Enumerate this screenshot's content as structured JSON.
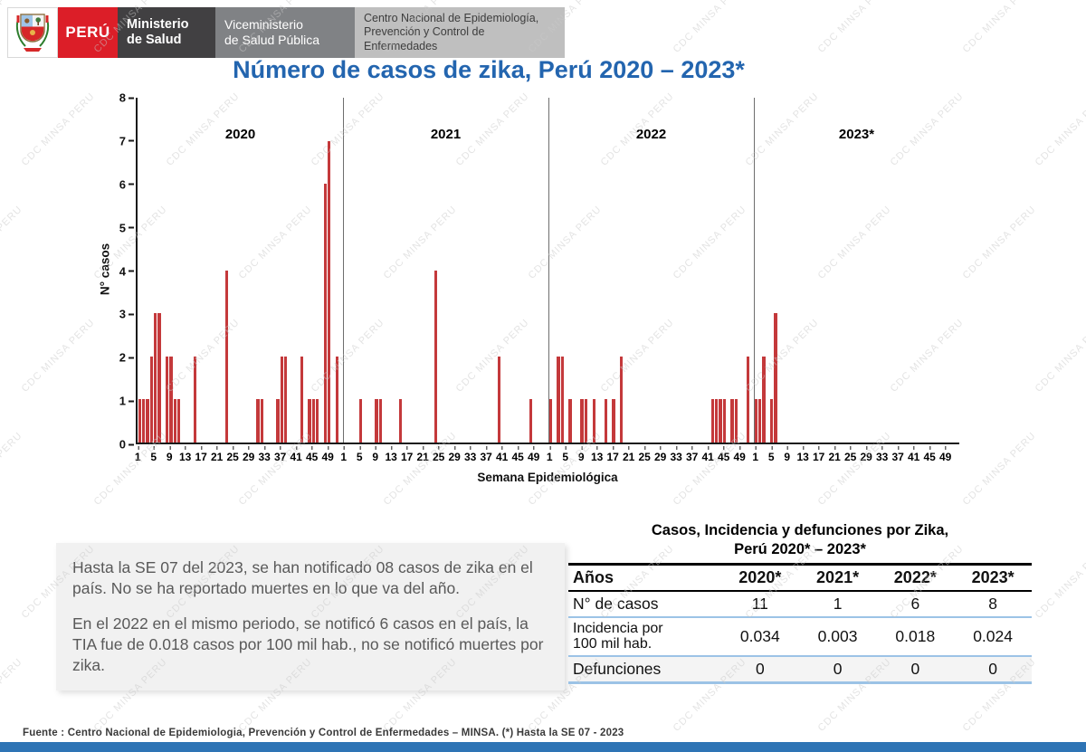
{
  "colors": {
    "peru_red": "#DC1E28",
    "ministry_dark": "#414042",
    "vice_gray": "#808285",
    "center_gray": "#BFBFBF",
    "title_blue": "#2365AF",
    "bar_red": "#C4393B",
    "table_line_blue": "#9CC3E6",
    "bottom_bar_blue": "#2E74B5",
    "note_bg": "#F1F1F1",
    "note_text": "#595959",
    "watermark_gray": "#C9C9C9"
  },
  "watermark": "CDC MINSA PERU",
  "header": {
    "brand_peru": "PERÚ",
    "ministry": "Ministerio\nde Salud",
    "viceministry": "Viceministerio\nde Salud Pública",
    "center": "Centro Nacional de Epidemiología,\nPrevención y Control de\nEnfermedades"
  },
  "title": "Número de casos de zika, Perú 2020 – 2023*",
  "chart_data": {
    "type": "bar",
    "title": "Número de casos de zika, Perú 2020 – 2023*",
    "ylabel": "N° casos",
    "xlabel": "Semana Epidemiológica",
    "ylim": [
      0,
      8
    ],
    "yticks": [
      0,
      1,
      2,
      3,
      4,
      5,
      6,
      7,
      8
    ],
    "grid": false,
    "weeks_per_year": 52,
    "x_tick_weeks": [
      1,
      5,
      9,
      13,
      17,
      21,
      25,
      29,
      33,
      37,
      41,
      45,
      49
    ],
    "bar_color": "#C4393B",
    "years": [
      {
        "label": "2020",
        "bars": [
          [
            1,
            1
          ],
          [
            2,
            1
          ],
          [
            3,
            1
          ],
          [
            4,
            2
          ],
          [
            5,
            3
          ],
          [
            6,
            3
          ],
          [
            8,
            2
          ],
          [
            9,
            2
          ],
          [
            10,
            1
          ],
          [
            11,
            1
          ],
          [
            15,
            2
          ],
          [
            23,
            4
          ],
          [
            31,
            1
          ],
          [
            32,
            1
          ],
          [
            36,
            1
          ],
          [
            37,
            2
          ],
          [
            38,
            2
          ],
          [
            42,
            2
          ],
          [
            44,
            1
          ],
          [
            45,
            1
          ],
          [
            46,
            1
          ],
          [
            48,
            6
          ],
          [
            49,
            7
          ],
          [
            51,
            2
          ]
        ]
      },
      {
        "label": "2021",
        "bars": [
          [
            5,
            1
          ],
          [
            9,
            1
          ],
          [
            10,
            1
          ],
          [
            15,
            1
          ],
          [
            24,
            4
          ],
          [
            40,
            2
          ],
          [
            48,
            1
          ]
        ]
      },
      {
        "label": "2022",
        "bars": [
          [
            1,
            1
          ],
          [
            3,
            2
          ],
          [
            4,
            2
          ],
          [
            6,
            1
          ],
          [
            9,
            1
          ],
          [
            10,
            1
          ],
          [
            12,
            1
          ],
          [
            15,
            1
          ],
          [
            17,
            1
          ],
          [
            19,
            2
          ],
          [
            42,
            1
          ],
          [
            43,
            1
          ],
          [
            44,
            1
          ],
          [
            45,
            1
          ],
          [
            47,
            1
          ],
          [
            48,
            1
          ],
          [
            51,
            2
          ]
        ]
      },
      {
        "label": "2023*",
        "bars": [
          [
            1,
            1
          ],
          [
            2,
            1
          ],
          [
            3,
            2
          ],
          [
            5,
            1
          ],
          [
            6,
            3
          ]
        ]
      }
    ]
  },
  "note_box": {
    "p1": "Hasta la SE 07 del 2023, se han notificado 08 casos de zika en el país. No se ha reportado muertes en lo que va del año.",
    "p2": "En el 2022 en el mismo periodo, se notificó 6 casos en el país, la TIA fue de 0.018 casos por 100 mil hab., no se notificó muertes por zika."
  },
  "table": {
    "title": "Casos, Incidencia y defunciones por Zika,\nPerú 2020* – 2023*",
    "col_label": "Años",
    "years": [
      "2020*",
      "2021*",
      "2022*",
      "2023*"
    ],
    "rows": [
      {
        "label": "N° de casos",
        "values": [
          "11",
          "1",
          "6",
          "8"
        ]
      },
      {
        "label": "Incidencia por\n100 mil hab.",
        "values": [
          "0.034",
          "0.003",
          "0.018",
          "0.024"
        ]
      },
      {
        "label": "Defunciones",
        "values": [
          "0",
          "0",
          "0",
          "0"
        ]
      }
    ]
  },
  "footer": {
    "source": "Fuente : Centro Nacional de Epidemiologia, Prevención y Control de Enfermedades – MINSA.  (*) Hasta la SE 07 - 2023"
  }
}
